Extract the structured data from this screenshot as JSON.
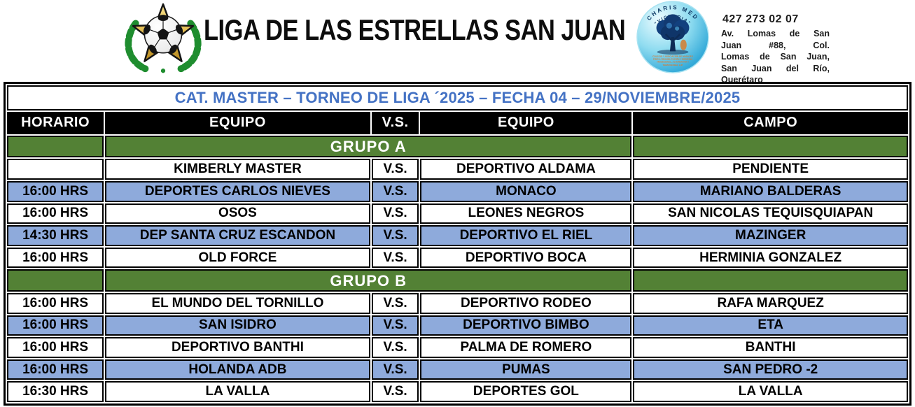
{
  "header": {
    "league_title": "LIGA DE LAS ESTRELLAS SAN JUAN",
    "league_logo": {
      "elements": [
        "laurel-wreath",
        "gold-star",
        "soccer-ball"
      ]
    },
    "sponsor": {
      "brand_arc": "CHARIS MED",
      "brand_sub_arc": "\"VICTORIA\"",
      "fine_print": [
        "COLEGIO Y ASOCIACIÓN DE MASAJES",
        "FÍSICA, REHABILITACIÓN Y MEDICINA",
        "TRADICIONAL, ALTERNATIVA Y",
        "TANATOLOGÍA, A.P."
      ],
      "phone": "427 273 02 07",
      "address_lines": [
        "Av. Lomas de San",
        "Juan #88, Col.",
        "Lomas de San Juan,",
        "San Juan del Río,",
        "Querétaro"
      ]
    }
  },
  "table": {
    "title": "CAT. MASTER – TORNEO DE LIGA ´2025 – FECHA 04 – 29/NOVIEMBRE/2025",
    "columns": [
      "HORARIO",
      "EQUIPO",
      "V.S.",
      "EQUIPO",
      "CAMPO"
    ],
    "vs_label": "V.S.",
    "groups": [
      {
        "label": "GRUPO A",
        "matches": [
          {
            "time": "",
            "home": "KIMBERLY MASTER",
            "away": "DEPORTIVO ALDAMA",
            "field": "PENDIENTE",
            "highlight": false
          },
          {
            "time": "16:00 HRS",
            "home": "DEPORTES CARLOS NIEVES",
            "away": "MONACO",
            "field": "MARIANO BALDERAS",
            "highlight": true
          },
          {
            "time": "16:00 HRS",
            "home": "OSOS",
            "away": "LEONES NEGROS",
            "field": "SAN NICOLAS TEQUISQUIAPAN",
            "highlight": false
          },
          {
            "time": "14:30 HRS",
            "home": "DEP SANTA CRUZ ESCANDON",
            "away": "DEPORTIVO EL RIEL",
            "field": "MAZINGER",
            "highlight": true
          },
          {
            "time": "16:00 HRS",
            "home": "OLD FORCE",
            "away": "DEPORTIVO BOCA",
            "field": "HERMINIA GONZALEZ",
            "highlight": false
          }
        ]
      },
      {
        "label": "GRUPO B",
        "matches": [
          {
            "time": "16:00 HRS",
            "home": "EL MUNDO DEL TORNILLO",
            "away": "DEPORTIVO RODEO",
            "field": "RAFA MARQUEZ",
            "highlight": false
          },
          {
            "time": "16:00 HRS",
            "home": "SAN ISIDRO",
            "away": "DEPORTIVO BIMBO",
            "field": "ETA",
            "highlight": true
          },
          {
            "time": "16:00 HRS",
            "home": "DEPORTIVO BANTHI",
            "away": "PALMA DE ROMERO",
            "field": "BANTHI",
            "highlight": false
          },
          {
            "time": "16:00 HRS",
            "home": "HOLANDA ADB",
            "away": "PUMAS",
            "field": "SAN PEDRO -2",
            "highlight": true
          },
          {
            "time": "16:30 HRS",
            "home": "LA VALLA",
            "away": "DEPORTES GOL",
            "field": "LA VALLA",
            "highlight": false
          }
        ]
      }
    ]
  },
  "colors": {
    "group_green": "#538135",
    "highlight_blue": "#8EAADB",
    "title_blue": "#4472C4",
    "header_black": "#000000"
  }
}
